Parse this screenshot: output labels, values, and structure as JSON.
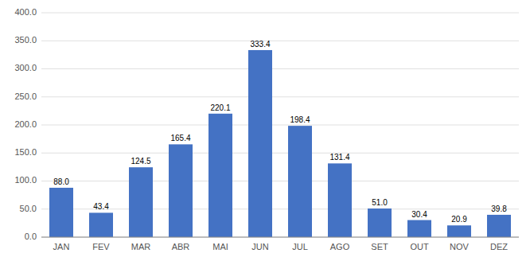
{
  "chart_data": {
    "type": "bar",
    "categories": [
      "JAN",
      "FEV",
      "MAR",
      "ABR",
      "MAI",
      "JUN",
      "JUL",
      "AGO",
      "SET",
      "OUT",
      "NOV",
      "DEZ"
    ],
    "values": [
      88.0,
      43.4,
      124.5,
      165.4,
      220.1,
      333.4,
      198.4,
      131.4,
      51.0,
      30.4,
      20.9,
      39.8
    ],
    "value_labels": [
      "88.0",
      "43.4",
      "124.5",
      "165.4",
      "220.1",
      "333.4",
      "198.4",
      "131.4",
      "51.0",
      "30.4",
      "20.9",
      "39.8"
    ],
    "color": "#4472C4",
    "ylim": [
      0,
      400
    ],
    "yticks": [
      {
        "value": 0,
        "label": "0.0"
      },
      {
        "value": 50,
        "label": "50.0"
      },
      {
        "value": 100,
        "label": "100.0"
      },
      {
        "value": 150,
        "label": "150.0"
      },
      {
        "value": 200,
        "label": "200.0"
      },
      {
        "value": 250,
        "label": "250.0"
      },
      {
        "value": 300,
        "label": "300.0"
      },
      {
        "value": 350,
        "label": "350.0"
      },
      {
        "value": 400,
        "label": "400.0"
      }
    ],
    "grid": true,
    "data_labels": true
  }
}
